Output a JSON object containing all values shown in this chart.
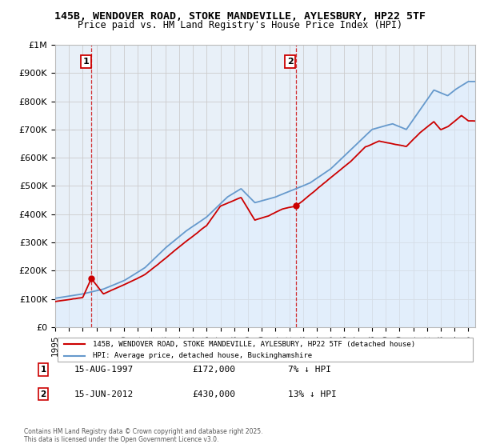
{
  "title": "145B, WENDOVER ROAD, STOKE MANDEVILLE, AYLESBURY, HP22 5TF",
  "subtitle": "Price paid vs. HM Land Registry's House Price Index (HPI)",
  "yticks": [
    0,
    100000,
    200000,
    300000,
    400000,
    500000,
    600000,
    700000,
    800000,
    900000,
    1000000
  ],
  "ytick_labels": [
    "£0",
    "£100K",
    "£200K",
    "£300K",
    "£400K",
    "£500K",
    "£600K",
    "£700K",
    "£800K",
    "£900K",
    "£1M"
  ],
  "xmin": 1995.0,
  "xmax": 2025.5,
  "ymin": 0,
  "ymax": 1000000,
  "sale1_x": 1997.62,
  "sale1_y": 172000,
  "sale2_x": 2012.46,
  "sale2_y": 430000,
  "sale1_date": "15-AUG-1997",
  "sale1_price": "£172,000",
  "sale1_hpi": "7% ↓ HPI",
  "sale2_date": "15-JUN-2012",
  "sale2_price": "£430,000",
  "sale2_hpi": "13% ↓ HPI",
  "red_color": "#cc0000",
  "blue_color": "#6699cc",
  "blue_fill": "#ddeeff",
  "grid_color": "#cccccc",
  "legend_line1": "145B, WENDOVER ROAD, STOKE MANDEVILLE, AYLESBURY, HP22 5TF (detached house)",
  "legend_line2": "HPI: Average price, detached house, Buckinghamshire",
  "footnote": "Contains HM Land Registry data © Crown copyright and database right 2025.\nThis data is licensed under the Open Government Licence v3.0.",
  "bg_color": "#ffffff"
}
